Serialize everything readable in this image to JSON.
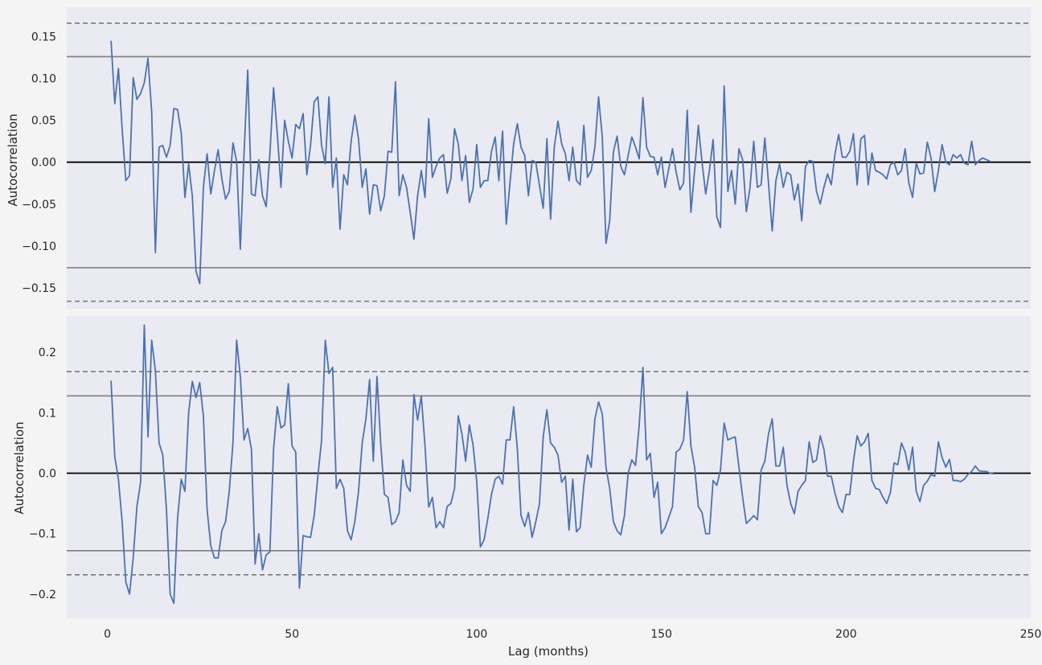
{
  "chart_data": [
    {
      "type": "line",
      "title": "",
      "ylabel": "Autocorrelation",
      "xlabel": "",
      "xlim": [
        -11,
        250
      ],
      "ylim": [
        -0.175,
        0.185
      ],
      "yticks": [
        -0.15,
        -0.1,
        -0.05,
        0.0,
        0.05,
        0.1,
        0.15
      ],
      "ytick_labels": [
        "−0.15",
        "−0.10",
        "−0.05",
        "0.00",
        "0.05",
        "0.10",
        "0.15"
      ],
      "xticks": [],
      "grid": false,
      "confidence_lines": {
        "solid": 0.126,
        "dashed": 0.166
      },
      "series_color": "#4c72b0",
      "series": [
        {
          "x_start": 1,
          "values": [
            0.145,
            0.07,
            0.112,
            0.04,
            -0.022,
            -0.016,
            0.101,
            0.075,
            0.082,
            0.095,
            0.124,
            0.06,
            -0.108,
            0.018,
            0.02,
            0.006,
            0.02,
            0.064,
            0.063,
            0.035,
            -0.042,
            -0.002,
            -0.04,
            -0.13,
            -0.145,
            -0.03,
            0.01,
            -0.038,
            -0.01,
            0.015,
            -0.02,
            -0.044,
            -0.035,
            0.023,
            0.001,
            -0.104,
            0.01,
            0.11,
            -0.038,
            -0.04,
            0.003,
            -0.04,
            -0.053,
            0.01,
            0.089,
            0.035,
            -0.03,
            0.05,
            0.025,
            0.005,
            0.045,
            0.04,
            0.058,
            -0.015,
            0.02,
            0.072,
            0.078,
            0.02,
            -0.002,
            0.078,
            -0.03,
            0.005,
            -0.08,
            -0.015,
            -0.027,
            0.025,
            0.056,
            0.028,
            -0.03,
            -0.008,
            -0.062,
            -0.027,
            -0.028,
            -0.058,
            -0.04,
            0.013,
            0.012,
            0.096,
            -0.04,
            -0.015,
            -0.03,
            -0.06,
            -0.092,
            -0.04,
            -0.01,
            -0.042,
            0.052,
            -0.018,
            -0.005,
            0.005,
            0.009,
            -0.037,
            -0.02,
            0.04,
            0.022,
            -0.022,
            0.008,
            -0.048,
            -0.032,
            0.021,
            -0.03,
            -0.022,
            -0.022,
            0.013,
            0.03,
            -0.022,
            0.037,
            -0.074,
            -0.025,
            0.022,
            0.046,
            0.018,
            0.008,
            -0.04,
            0.002,
            0,
            -0.028,
            -0.055,
            0.028,
            -0.068,
            0.018,
            0.049,
            0.022,
            0.01,
            -0.022,
            0.018,
            -0.022,
            -0.027,
            0.044,
            -0.018,
            -0.01,
            0.018,
            0.078,
            0.03,
            -0.097,
            -0.07,
            0.012,
            0.031,
            -0.005,
            -0.015,
            0.008,
            0.03,
            0.018,
            0.004,
            0.077,
            0.018,
            0.007,
            0.006,
            -0.015,
            0.006,
            -0.03,
            -0.008,
            0.016,
            -0.012,
            -0.033,
            -0.025,
            0.062,
            -0.06,
            -0.01,
            0.044,
            0,
            -0.038,
            -0.01,
            0.027,
            -0.065,
            -0.078,
            0.091,
            -0.035,
            -0.01,
            -0.05,
            0.016,
            0.003,
            -0.059,
            -0.03,
            0.025,
            -0.03,
            -0.027,
            0.029,
            -0.025,
            -0.082,
            -0.022,
            -0.002,
            -0.03,
            -0.012,
            -0.015,
            -0.045,
            -0.026,
            -0.07,
            -0.005,
            0.002,
            0.001,
            -0.035,
            -0.05,
            -0.03,
            -0.014,
            -0.027,
            0.01,
            0.033,
            0.006,
            0.006,
            0.013,
            0.034,
            -0.027,
            0.028,
            0.032,
            -0.027,
            0.011,
            -0.01,
            -0.012,
            -0.015,
            -0.02,
            -0.003,
            0,
            -0.015,
            -0.01,
            0.016,
            -0.025,
            -0.042,
            -0.001,
            -0.014,
            -0.013,
            0.024,
            0.005,
            -0.035,
            -0.01,
            0.021,
            0,
            -0.003,
            0.009,
            0.005,
            0.009,
            -0.001,
            -0.003,
            0.025,
            -0.003,
            0.002,
            0.005,
            0.003,
            0.001
          ]
        }
      ]
    },
    {
      "type": "line",
      "title": "",
      "ylabel": "Autocorrelation",
      "xlabel": "Lag (months)",
      "xlim": [
        -11,
        250
      ],
      "ylim": [
        -0.24,
        0.26
      ],
      "yticks": [
        -0.2,
        -0.1,
        0.0,
        0.1,
        0.2
      ],
      "ytick_labels": [
        "−0.2",
        "−0.1",
        "0.0",
        "0.1",
        "0.2"
      ],
      "xticks": [
        0,
        50,
        100,
        150,
        200,
        250
      ],
      "xtick_labels": [
        "0",
        "50",
        "100",
        "150",
        "200",
        "250"
      ],
      "grid": false,
      "confidence_lines": {
        "solid": 0.128,
        "dashed": 0.168
      },
      "series_color": "#4c72b0",
      "series": [
        {
          "x_start": 1,
          "values": [
            0.153,
            0.028,
            -0.01,
            -0.08,
            -0.18,
            -0.2,
            -0.14,
            -0.055,
            -0.015,
            0.245,
            0.06,
            0.22,
            0.17,
            0.05,
            0.03,
            -0.06,
            -0.2,
            -0.215,
            -0.075,
            -0.01,
            -0.03,
            0.1,
            0.152,
            0.125,
            0.15,
            0.095,
            -0.06,
            -0.12,
            -0.14,
            -0.14,
            -0.095,
            -0.08,
            -0.03,
            0.05,
            0.22,
            0.16,
            0.055,
            0.074,
            0.04,
            -0.15,
            -0.1,
            -0.16,
            -0.135,
            -0.13,
            0.04,
            0.11,
            0.075,
            0.08,
            0.148,
            0.045,
            0.035,
            -0.19,
            -0.103,
            -0.105,
            -0.106,
            -0.07,
            -0.005,
            0.055,
            0.22,
            0.165,
            0.175,
            -0.025,
            -0.01,
            -0.025,
            -0.095,
            -0.11,
            -0.08,
            -0.03,
            0.05,
            0.09,
            0.155,
            0.02,
            0.16,
            0.05,
            -0.035,
            -0.04,
            -0.085,
            -0.08,
            -0.065,
            0.022,
            -0.02,
            -0.03,
            0.13,
            0.088,
            0.128,
            0.045,
            -0.056,
            -0.04,
            -0.09,
            -0.08,
            -0.09,
            -0.055,
            -0.05,
            -0.025,
            0.095,
            0.065,
            0.02,
            0.08,
            0.047,
            -0.013,
            -0.122,
            -0.11,
            -0.075,
            -0.035,
            -0.01,
            -0.005,
            -0.018,
            0.055,
            0.055,
            0.11,
            0.04,
            -0.07,
            -0.088,
            -0.065,
            -0.106,
            -0.08,
            -0.05,
            0.06,
            0.105,
            0.05,
            0.043,
            0.03,
            -0.015,
            -0.005,
            -0.094,
            -0.01,
            -0.097,
            -0.09,
            -0.02,
            0.03,
            0.01,
            0.09,
            0.118,
            0.098,
            0.01,
            -0.025,
            -0.08,
            -0.095,
            -0.102,
            -0.07,
            0,
            0.022,
            0.013,
            0.08,
            0.175,
            0.022,
            0.033,
            -0.04,
            -0.015,
            -0.1,
            -0.09,
            -0.073,
            -0.055,
            0.035,
            0.04,
            0.055,
            0.135,
            0.045,
            0.01,
            -0.055,
            -0.065,
            -0.1,
            -0.1,
            -0.012,
            -0.02,
            0.005,
            0.083,
            0.055,
            0.058,
            0.06,
            0.01,
            -0.04,
            -0.083,
            -0.077,
            -0.07,
            -0.077,
            0.005,
            0.02,
            0.065,
            0.09,
            0.012,
            0.012,
            0.043,
            -0.02,
            -0.05,
            -0.067,
            -0.03,
            -0.02,
            -0.012,
            0.052,
            0.018,
            0.022,
            0.062,
            0.04,
            -0.005,
            -0.005,
            -0.033,
            -0.055,
            -0.065,
            -0.035,
            -0.035,
            0.02,
            0.062,
            0.045,
            0.052,
            0.066,
            -0.012,
            -0.025,
            -0.027,
            -0.04,
            -0.05,
            -0.032,
            0.017,
            0.014,
            0.05,
            0.035,
            0.005,
            0.043,
            -0.03,
            -0.047,
            -0.02,
            -0.013,
            -0.002,
            -0.005,
            0.052,
            0.026,
            0.01,
            0.023,
            -0.012,
            -0.012,
            -0.014,
            -0.01,
            -0.002,
            0.003,
            0.012,
            0.004,
            0.003,
            0.003,
            0,
            -0.001
          ]
        }
      ]
    }
  ]
}
